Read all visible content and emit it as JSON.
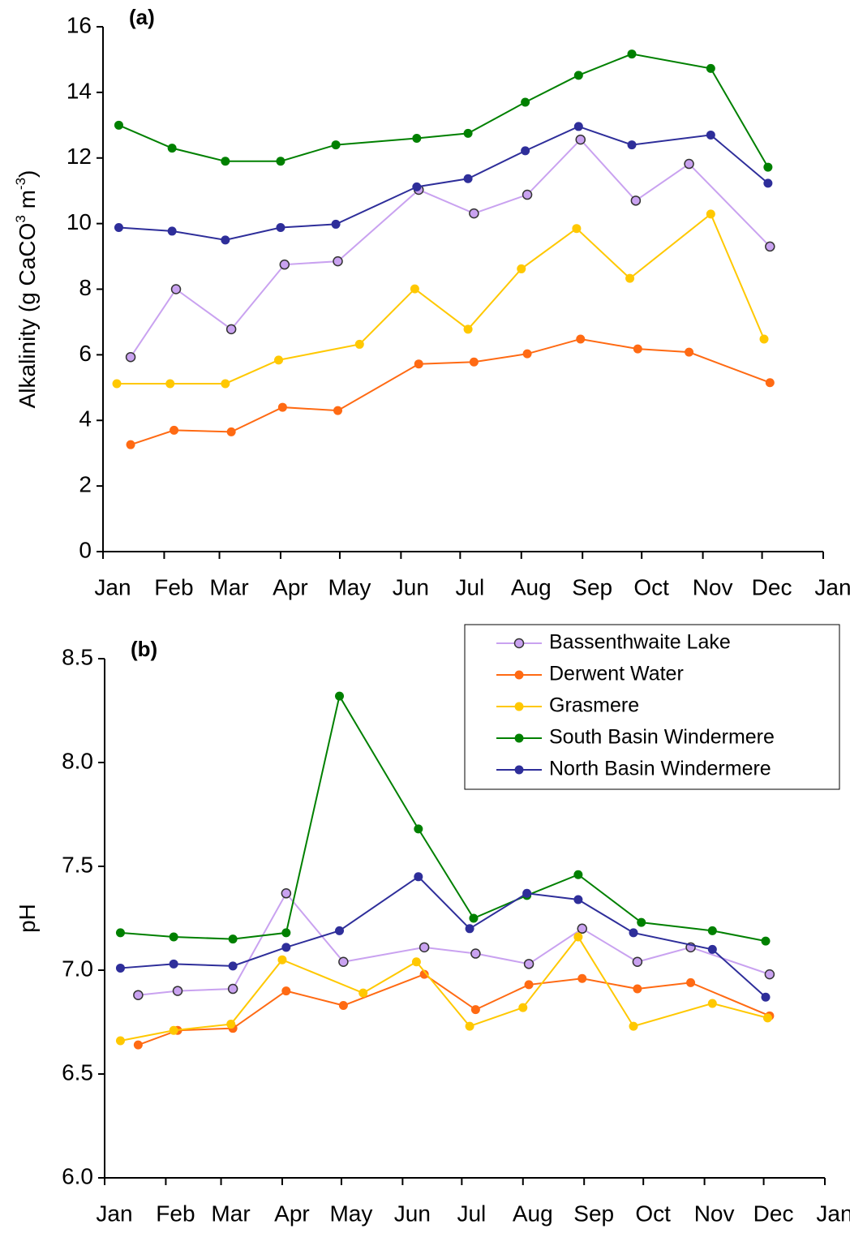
{
  "chart_data": [
    {
      "type": "line",
      "title": "(a)",
      "ylabel": [
        "Alkalinity (g CaCO",
        "3",
        " m",
        "-3",
        ")"
      ],
      "xlim": [
        0,
        365
      ],
      "xticks": [
        {
          "value": 0,
          "label": "Jan"
        },
        {
          "value": 31,
          "label": "Feb"
        },
        {
          "value": 59,
          "label": "Mar"
        },
        {
          "value": 90,
          "label": "Apr"
        },
        {
          "value": 120,
          "label": "May"
        },
        {
          "value": 151,
          "label": "Jun"
        },
        {
          "value": 181,
          "label": "Jul"
        },
        {
          "value": 212,
          "label": "Aug"
        },
        {
          "value": 243,
          "label": "Sep"
        },
        {
          "value": 273,
          "label": "Oct"
        },
        {
          "value": 304,
          "label": "Nov"
        },
        {
          "value": 334,
          "label": "Dec"
        },
        {
          "value": 365,
          "label": "Jan"
        }
      ],
      "ylim": [
        0,
        16
      ],
      "yticks": [
        0,
        2,
        4,
        6,
        8,
        10,
        12,
        14,
        16
      ],
      "series": [
        {
          "color": "#c9a2f0",
          "edgecolor": "#333333",
          "x": [
            14,
            37,
            65,
            92,
            119,
            160,
            188,
            215,
            242,
            270,
            297,
            338
          ],
          "values": [
            5.93,
            8.0,
            6.78,
            8.75,
            8.85,
            11.03,
            10.31,
            10.88,
            12.56,
            10.7,
            11.82,
            9.3
          ]
        },
        {
          "color": "#ff6a13",
          "x": [
            14,
            36,
            65,
            91,
            119,
            160,
            188,
            215,
            242,
            271,
            297,
            338
          ],
          "values": [
            3.26,
            3.7,
            3.65,
            4.4,
            4.3,
            5.72,
            5.78,
            6.03,
            6.48,
            6.18,
            6.08,
            5.15
          ]
        },
        {
          "color": "#ffc800",
          "x": [
            7,
            34,
            62,
            89,
            130,
            158,
            185,
            212,
            240,
            267,
            308,
            335
          ],
          "values": [
            5.12,
            5.12,
            5.12,
            5.84,
            6.32,
            8.01,
            6.78,
            8.62,
            9.85,
            8.33,
            10.29,
            6.48
          ]
        },
        {
          "color": "#008000",
          "x": [
            8,
            35,
            62,
            90,
            118,
            159,
            185,
            214,
            241,
            268,
            308,
            337
          ],
          "values": [
            13.0,
            12.3,
            11.9,
            11.9,
            12.4,
            12.6,
            12.75,
            13.7,
            14.52,
            15.17,
            14.73,
            11.72
          ]
        },
        {
          "color": "#2e2e9a",
          "x": [
            8,
            35,
            62,
            90,
            118,
            159,
            185,
            214,
            241,
            268,
            308,
            337
          ],
          "values": [
            9.88,
            9.77,
            9.5,
            9.88,
            9.98,
            11.12,
            11.37,
            12.22,
            12.96,
            12.4,
            12.7,
            11.23
          ]
        }
      ]
    },
    {
      "type": "line",
      "title": "(b)",
      "ylabel": [
        "pH"
      ],
      "xlim": [
        0,
        365
      ],
      "xticks": [
        {
          "value": 0,
          "label": "Jan"
        },
        {
          "value": 31,
          "label": "Feb"
        },
        {
          "value": 59,
          "label": "Mar"
        },
        {
          "value": 90,
          "label": "Apr"
        },
        {
          "value": 120,
          "label": "May"
        },
        {
          "value": 151,
          "label": "Jun"
        },
        {
          "value": 181,
          "label": "Jul"
        },
        {
          "value": 212,
          "label": "Aug"
        },
        {
          "value": 243,
          "label": "Sep"
        },
        {
          "value": 273,
          "label": "Oct"
        },
        {
          "value": 304,
          "label": "Nov"
        },
        {
          "value": 334,
          "label": "Dec"
        },
        {
          "value": 365,
          "label": "Jan"
        }
      ],
      "ylim": [
        6,
        8.5
      ],
      "yticks": [
        {
          "value": 6,
          "label": "6.0"
        },
        6.5,
        {
          "value": 7,
          "label": "7.0"
        },
        7.5,
        {
          "value": 8,
          "label": "8.0"
        },
        8.5
      ],
      "legend": "upper right",
      "series": [
        {
          "name": "Bassenthwaite Lake",
          "color": "#c9a2f0",
          "edgecolor": "#333333",
          "x": [
            17,
            37,
            65,
            92,
            121,
            162,
            188,
            215,
            242,
            270,
            297,
            337
          ],
          "values": [
            6.88,
            6.9,
            6.91,
            7.37,
            7.04,
            7.11,
            7.08,
            7.03,
            7.2,
            7.04,
            7.11,
            6.98
          ]
        },
        {
          "name": "Derwent Water",
          "color": "#ff6a13",
          "x": [
            17,
            37,
            65,
            92,
            121,
            162,
            188,
            215,
            242,
            270,
            297,
            337
          ],
          "values": [
            6.64,
            6.71,
            6.72,
            6.9,
            6.83,
            6.98,
            6.81,
            6.93,
            6.96,
            6.91,
            6.94,
            6.78
          ]
        },
        {
          "name": "Grasmere",
          "color": "#ffc800",
          "x": [
            8,
            35,
            64,
            90,
            131,
            158,
            185,
            212,
            240,
            268,
            308,
            336
          ],
          "values": [
            6.66,
            6.71,
            6.74,
            7.05,
            6.89,
            7.04,
            6.73,
            6.82,
            7.16,
            6.73,
            6.84,
            6.77
          ]
        },
        {
          "name": "South Basin Windermere",
          "color": "#008000",
          "x": [
            8,
            35,
            65,
            92,
            119,
            159,
            187,
            214,
            240,
            272,
            308,
            335
          ],
          "values": [
            7.18,
            7.16,
            7.15,
            7.18,
            8.32,
            7.68,
            7.25,
            7.36,
            7.46,
            7.23,
            7.19,
            7.14
          ]
        },
        {
          "name": "North Basin Windermere",
          "color": "#2e2e9a",
          "x": [
            8,
            35,
            65,
            92,
            119,
            159,
            185,
            214,
            240,
            268,
            308,
            335
          ],
          "values": [
            7.01,
            7.03,
            7.02,
            7.11,
            7.19,
            7.45,
            7.2,
            7.37,
            7.34,
            7.18,
            7.1,
            6.87
          ]
        }
      ]
    }
  ]
}
